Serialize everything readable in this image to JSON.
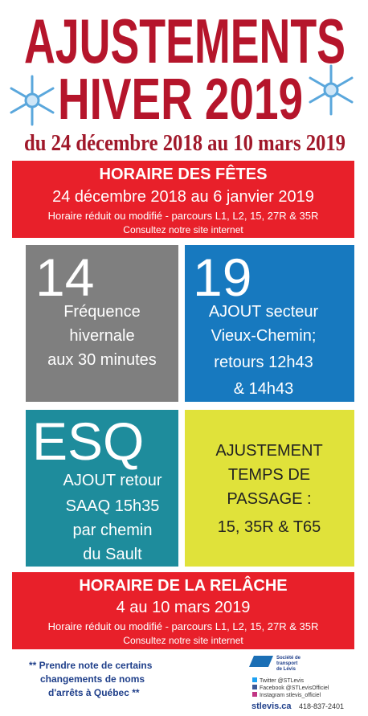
{
  "header": {
    "title_line1": "AJUSTEMENTS",
    "title_line2": "HIVER 2019",
    "dates": "du 24 décembre 2018 au 10 mars 2019"
  },
  "holidays": {
    "title": "HORAIRE DES FÊTES",
    "dates": "24 décembre 2018 au 6 janvier 2019",
    "note": "Horaire réduit ou modifié - parcours L1, L2, 15, 27R & 35R",
    "link": "Consultez notre site internet"
  },
  "tiles": [
    {
      "route": "14",
      "lines": [
        "Fréquence",
        "hivernale",
        "aux 30 minutes"
      ]
    },
    {
      "route": "19",
      "lines": [
        "AJOUT secteur",
        "Vieux-Chemin;",
        "retours 12h43",
        "& 14h43"
      ]
    },
    {
      "route": "ESQ",
      "lines": [
        "AJOUT retour",
        "SAAQ 15h35",
        "par chemin",
        "du Sault"
      ]
    },
    {
      "lines": [
        "AJUSTEMENT",
        "TEMPS DE",
        "PASSAGE :",
        "15, 35R & T65"
      ]
    }
  ],
  "spring_break": {
    "title": "HORAIRE DE LA RELÂCHE",
    "dates": "4 au 10 mars 2019",
    "note": "Horaire réduit ou modifié - parcours L1, L2, 15, 27R & 35R",
    "link": "Consultez notre site internet"
  },
  "footer": {
    "note": [
      "** Prendre note de certains",
      "changements de noms",
      "d'arrêts à Québec **"
    ],
    "logo": [
      "Société de",
      "transport",
      "de Lévis"
    ],
    "social": [
      "Twitter @STLevis",
      "Facebook @STLevisOfficiel",
      "Instagram stlevis_officiel"
    ],
    "website": "stlevis.ca",
    "phone": "418-837-2401"
  }
}
